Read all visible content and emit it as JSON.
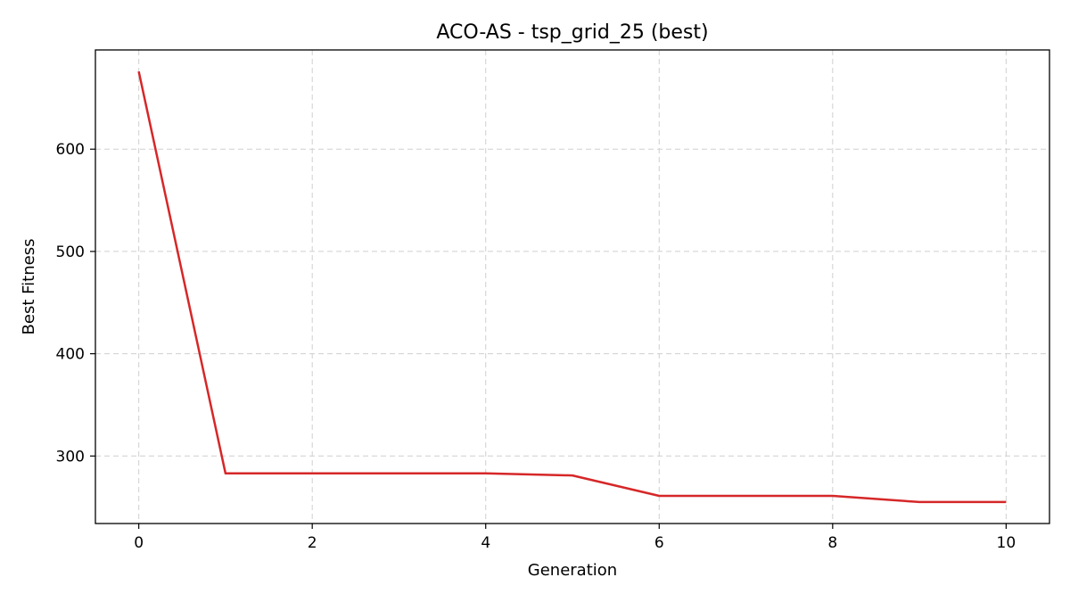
{
  "chart_data": {
    "type": "line",
    "title": "ACO-AS - tsp_grid_25 (best)",
    "xlabel": "Generation",
    "ylabel": "Best Fitness",
    "xlim": [
      -0.5,
      10.5
    ],
    "ylim": [
      234,
      697
    ],
    "xticks": [
      0,
      2,
      4,
      6,
      8,
      10
    ],
    "yticks": [
      300,
      400,
      500,
      600
    ],
    "grid": true,
    "series": [
      {
        "color": "#d62728",
        "x": [
          0,
          1,
          2,
          3,
          4,
          5,
          6,
          7,
          8,
          9,
          10
        ],
        "y": [
          676,
          283,
          283,
          283,
          283,
          281,
          261,
          261,
          261,
          255,
          255
        ]
      }
    ]
  }
}
